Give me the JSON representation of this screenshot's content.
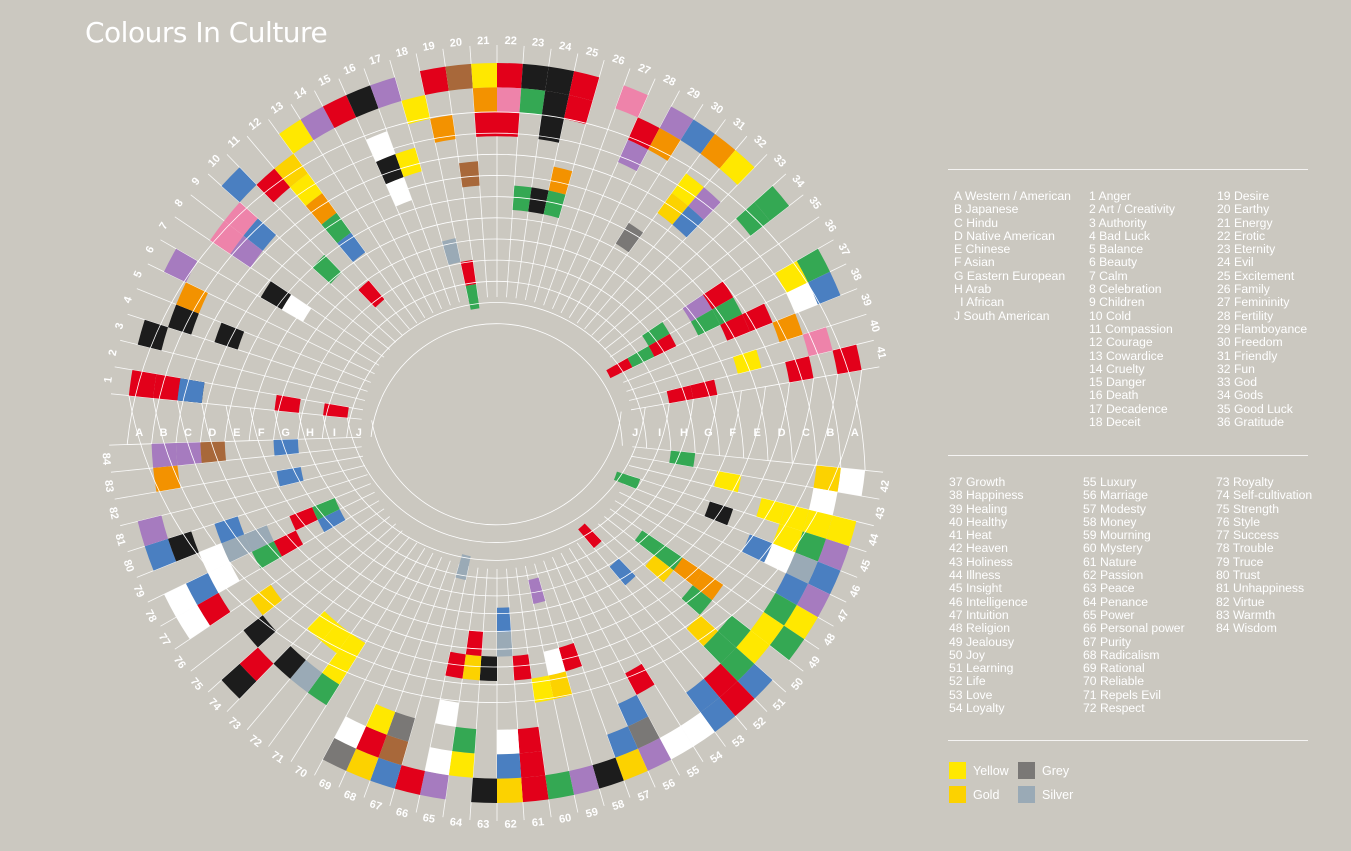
{
  "title": "Colours In Culture",
  "cultures": [
    {
      "code": "A",
      "name": "Western / American"
    },
    {
      "code": "B",
      "name": "Japanese"
    },
    {
      "code": "C",
      "name": "Hindu"
    },
    {
      "code": "D",
      "name": "Native American"
    },
    {
      "code": "E",
      "name": "Chinese"
    },
    {
      "code": "F",
      "name": "Asian"
    },
    {
      "code": "G",
      "name": "Eastern European"
    },
    {
      "code": "H",
      "name": "Arab"
    },
    {
      "code": "I",
      "name": "African"
    },
    {
      "code": "J",
      "name": "South American"
    }
  ],
  "meanings": [
    "Anger",
    "Art / Creativity",
    "Authority",
    "Bad Luck",
    "Balance",
    "Beauty",
    "Calm",
    "Celebration",
    "Children",
    "Cold",
    "Compassion",
    "Courage",
    "Cowardice",
    "Cruelty",
    "Danger",
    "Death",
    "Decadence",
    "Deceit",
    "Desire",
    "Earthy",
    "Energy",
    "Erotic",
    "Eternity",
    "Evil",
    "Excitement",
    "Family",
    "Femininity",
    "Fertility",
    "Flamboyance",
    "Freedom",
    "Friendly",
    "Fun",
    "God",
    "Gods",
    "Good Luck",
    "Gratitude",
    "Growth",
    "Happiness",
    "Healing",
    "Healthy",
    "Heat",
    "Heaven",
    "Holiness",
    "Illness",
    "Insight",
    "Intelligence",
    "Intuition",
    "Religion",
    "Jealousy",
    "Joy",
    "Learning",
    "Life",
    "Love",
    "Loyalty",
    "Luxury",
    "Marriage",
    "Modesty",
    "Money",
    "Mourning",
    "Mystery",
    "Nature",
    "Passion",
    "Peace",
    "Penance",
    "Power",
    "Personal power",
    "Purity",
    "Radicalism",
    "Rational",
    "Reliable",
    "Repels Evil",
    "Respect",
    "Royalty",
    "Self-cultivation",
    "Strength",
    "Style",
    "Success",
    "Trouble",
    "Truce",
    "Trust",
    "Unhappiness",
    "Virtue",
    "Warmth",
    "Wisdom"
  ],
  "legend": [
    {
      "label": "Yellow",
      "color": "#ffe800"
    },
    {
      "label": "Grey",
      "color": "#7a7876"
    },
    {
      "label": "Gold",
      "color": "#fcd200"
    },
    {
      "label": "Silver",
      "color": "#9aaab6"
    }
  ],
  "colors": {
    "red": "#e2001a",
    "black": "#1c1c1c",
    "white": "#ffffff",
    "yellow": "#ffe800",
    "gold": "#fcd200",
    "orange": "#f39200",
    "green": "#34a853",
    "blue": "#4a7fc1",
    "purple": "#a67bbf",
    "pink": "#ee83aa",
    "brown": "#a8683a",
    "grey": "#7a7876",
    "silver": "#9aaab6",
    "background": "#cbc8c0"
  },
  "chart_data": {
    "type": "heatmap",
    "layout": "radial",
    "rings": [
      "A",
      "B",
      "C",
      "D",
      "E",
      "F",
      "G",
      "H",
      "I",
      "J"
    ],
    "cells": [
      [
        1,
        "A",
        "red"
      ],
      [
        1,
        "B",
        "red"
      ],
      [
        1,
        "C",
        "black"
      ],
      [
        1,
        "C",
        "blue"
      ],
      [
        1,
        "G",
        "red"
      ],
      [
        1,
        "I",
        "red"
      ],
      [
        3,
        "A",
        "black"
      ],
      [
        4,
        "B",
        "black"
      ],
      [
        4,
        "D",
        "black"
      ],
      [
        5,
        "B",
        "orange"
      ],
      [
        6,
        "A",
        "purple"
      ],
      [
        7,
        "E",
        "black"
      ],
      [
        7,
        "F",
        "white"
      ],
      [
        8,
        "B",
        "pink"
      ],
      [
        8,
        "C",
        "purple"
      ],
      [
        9,
        "B",
        "pink"
      ],
      [
        9,
        "C",
        "blue"
      ],
      [
        10,
        "A",
        "blue"
      ],
      [
        10,
        "F",
        "green"
      ],
      [
        11,
        "B",
        "red"
      ],
      [
        11,
        "H",
        "red"
      ],
      [
        12,
        "B",
        "gold"
      ],
      [
        12,
        "C",
        "yellow"
      ],
      [
        12,
        "D",
        "orange"
      ],
      [
        12,
        "E",
        "green"
      ],
      [
        12,
        "F",
        "blue"
      ],
      [
        13,
        "A",
        "yellow"
      ],
      [
        14,
        "A",
        "purple"
      ],
      [
        15,
        "A",
        "red"
      ],
      [
        16,
        "A",
        "black"
      ],
      [
        16,
        "C",
        "white"
      ],
      [
        16,
        "D",
        "black"
      ],
      [
        16,
        "E",
        "white"
      ],
      [
        17,
        "A",
        "purple"
      ],
      [
        17,
        "D",
        "yellow"
      ],
      [
        18,
        "B",
        "yellow"
      ],
      [
        18,
        "H",
        "silver"
      ],
      [
        19,
        "A",
        "red"
      ],
      [
        19,
        "C",
        "orange"
      ],
      [
        19,
        "I",
        "red"
      ],
      [
        19,
        "J",
        "green"
      ],
      [
        20,
        "A",
        "brown"
      ],
      [
        20,
        "E",
        "brown"
      ],
      [
        21,
        "A",
        "yellow"
      ],
      [
        21,
        "B",
        "orange"
      ],
      [
        21,
        "C",
        "red"
      ],
      [
        22,
        "A",
        "red"
      ],
      [
        22,
        "B",
        "pink"
      ],
      [
        22,
        "C",
        "red"
      ],
      [
        23,
        "A",
        "black"
      ],
      [
        23,
        "B",
        "green"
      ],
      [
        23,
        "F",
        "green"
      ],
      [
        24,
        "A",
        "black"
      ],
      [
        24,
        "B",
        "black"
      ],
      [
        24,
        "C",
        "black"
      ],
      [
        24,
        "F",
        "black"
      ],
      [
        25,
        "A",
        "red"
      ],
      [
        25,
        "B",
        "red"
      ],
      [
        25,
        "E",
        "orange"
      ],
      [
        25,
        "F",
        "green"
      ],
      [
        27,
        "A",
        "pink"
      ],
      [
        28,
        "B",
        "red"
      ],
      [
        28,
        "C",
        "purple"
      ],
      [
        29,
        "A",
        "purple"
      ],
      [
        29,
        "B",
        "orange"
      ],
      [
        30,
        "A",
        "blue"
      ],
      [
        30,
        "F",
        "grey"
      ],
      [
        31,
        "A",
        "orange"
      ],
      [
        31,
        "C",
        "yellow"
      ],
      [
        31,
        "D",
        "gold"
      ],
      [
        32,
        "A",
        "yellow"
      ],
      [
        32,
        "C",
        "purple"
      ],
      [
        32,
        "D",
        "blue"
      ],
      [
        34,
        "A",
        "green"
      ],
      [
        34,
        "B",
        "green"
      ],
      [
        36,
        "E",
        "red"
      ],
      [
        36,
        "F",
        "purple"
      ],
      [
        36,
        "H",
        "green"
      ],
      [
        37,
        "A",
        "green"
      ],
      [
        37,
        "B",
        "yellow"
      ],
      [
        37,
        "E",
        "green"
      ],
      [
        37,
        "F",
        "green"
      ],
      [
        37,
        "H",
        "red"
      ],
      [
        37,
        "I",
        "green"
      ],
      [
        37,
        "J",
        "red"
      ],
      [
        38,
        "A",
        "blue"
      ],
      [
        38,
        "B",
        "white"
      ],
      [
        38,
        "D",
        "red"
      ],
      [
        38,
        "E",
        "red"
      ],
      [
        39,
        "C",
        "orange"
      ],
      [
        40,
        "B",
        "pink"
      ],
      [
        40,
        "E",
        "yellow"
      ],
      [
        41,
        "A",
        "red"
      ],
      [
        41,
        "C",
        "red"
      ],
      [
        41,
        "G",
        "red"
      ],
      [
        41,
        "H",
        "red"
      ],
      [
        42,
        "A",
        "white"
      ],
      [
        42,
        "B",
        "gold"
      ],
      [
        42,
        "H",
        "green"
      ],
      [
        43,
        "F",
        "yellow"
      ],
      [
        43,
        "B",
        "white"
      ],
      [
        44,
        "A",
        "yellow"
      ],
      [
        44,
        "B",
        "yellow"
      ],
      [
        44,
        "C",
        "yellow"
      ],
      [
        44,
        "D",
        "yellow"
      ],
      [
        45,
        "A",
        "purple"
      ],
      [
        45,
        "B",
        "green"
      ],
      [
        45,
        "C",
        "yellow"
      ],
      [
        45,
        "F",
        "black"
      ],
      [
        45,
        "J",
        "green"
      ],
      [
        46,
        "A",
        "blue"
      ],
      [
        46,
        "B",
        "silver"
      ],
      [
        46,
        "C",
        "white"
      ],
      [
        46,
        "D",
        "blue"
      ],
      [
        47,
        "A",
        "purple"
      ],
      [
        47,
        "B",
        "blue"
      ],
      [
        48,
        "A",
        "yellow"
      ],
      [
        48,
        "B",
        "green"
      ],
      [
        49,
        "A",
        "green"
      ],
      [
        49,
        "B",
        "yellow"
      ],
      [
        49,
        "E",
        "orange"
      ],
      [
        49,
        "F",
        "orange"
      ],
      [
        49,
        "G",
        "green"
      ],
      [
        49,
        "H",
        "green"
      ],
      [
        50,
        "B",
        "yellow"
      ],
      [
        50,
        "C",
        "green"
      ],
      [
        50,
        "E",
        "green"
      ],
      [
        50,
        "G",
        "gold"
      ],
      [
        51,
        "A",
        "blue"
      ],
      [
        51,
        "B",
        "green"
      ],
      [
        51,
        "C",
        "green"
      ],
      [
        51,
        "D",
        "gold"
      ],
      [
        52,
        "A",
        "red"
      ],
      [
        52,
        "B",
        "red"
      ],
      [
        52,
        "J",
        "red"
      ],
      [
        52,
        "H",
        "blue"
      ],
      [
        53,
        "A",
        "blue"
      ],
      [
        53,
        "B",
        "blue"
      ],
      [
        54,
        "A",
        "white"
      ],
      [
        55,
        "A",
        "white"
      ],
      [
        55,
        "D",
        "red"
      ],
      [
        56,
        "A",
        "purple"
      ],
      [
        56,
        "B",
        "grey"
      ],
      [
        56,
        "C",
        "blue"
      ],
      [
        57,
        "A",
        "gold"
      ],
      [
        57,
        "B",
        "blue"
      ],
      [
        58,
        "A",
        "black"
      ],
      [
        58,
        "F",
        "red"
      ],
      [
        59,
        "A",
        "purple"
      ],
      [
        59,
        "E",
        "gold"
      ],
      [
        59,
        "F",
        "white"
      ],
      [
        59,
        "I",
        "purple"
      ],
      [
        60,
        "A",
        "green"
      ],
      [
        60,
        "E",
        "yellow"
      ],
      [
        61,
        "A",
        "red"
      ],
      [
        61,
        "B",
        "red"
      ],
      [
        61,
        "C",
        "red"
      ],
      [
        61,
        "F",
        "red"
      ],
      [
        62,
        "A",
        "gold"
      ],
      [
        62,
        "B",
        "blue"
      ],
      [
        62,
        "C",
        "white"
      ],
      [
        62,
        "G",
        "silver"
      ],
      [
        62,
        "H",
        "blue"
      ],
      [
        63,
        "A",
        "black"
      ],
      [
        63,
        "F",
        "black"
      ],
      [
        64,
        "B",
        "yellow"
      ],
      [
        64,
        "C",
        "green"
      ],
      [
        64,
        "F",
        "gold"
      ],
      [
        64,
        "G",
        "red"
      ],
      [
        65,
        "A",
        "purple"
      ],
      [
        65,
        "B",
        "white"
      ],
      [
        65,
        "D",
        "white"
      ],
      [
        65,
        "F",
        "red"
      ],
      [
        66,
        "A",
        "red"
      ],
      [
        66,
        "J",
        "silver"
      ],
      [
        67,
        "A",
        "blue"
      ],
      [
        67,
        "B",
        "brown"
      ],
      [
        67,
        "C",
        "grey"
      ],
      [
        68,
        "A",
        "gold"
      ],
      [
        68,
        "B",
        "red"
      ],
      [
        68,
        "C",
        "yellow"
      ],
      [
        69,
        "A",
        "grey"
      ],
      [
        69,
        "B",
        "white"
      ],
      [
        71,
        "C",
        "green"
      ],
      [
        71,
        "D",
        "yellow"
      ],
      [
        71,
        "E",
        "yellow"
      ],
      [
        72,
        "C",
        "silver"
      ],
      [
        72,
        "E",
        "yellow"
      ],
      [
        73,
        "C",
        "black"
      ],
      [
        73,
        "E",
        "yellow"
      ],
      [
        74,
        "A",
        "black"
      ],
      [
        74,
        "B",
        "red"
      ],
      [
        75,
        "C",
        "black"
      ],
      [
        76,
        "D",
        "gold"
      ],
      [
        77,
        "A",
        "white"
      ],
      [
        77,
        "B",
        "red"
      ],
      [
        78,
        "A",
        "white"
      ],
      [
        78,
        "B",
        "blue"
      ],
      [
        78,
        "C",
        "white"
      ],
      [
        78,
        "E",
        "green"
      ],
      [
        78,
        "F",
        "red"
      ],
      [
        78,
        "H",
        "blue"
      ],
      [
        79,
        "C",
        "white"
      ],
      [
        79,
        "D",
        "silver"
      ],
      [
        79,
        "E",
        "silver"
      ],
      [
        79,
        "G",
        "red"
      ],
      [
        79,
        "H",
        "green"
      ],
      [
        80,
        "A",
        "blue"
      ],
      [
        80,
        "B",
        "black"
      ],
      [
        80,
        "D",
        "blue"
      ],
      [
        81,
        "A",
        "purple"
      ],
      [
        82,
        "G",
        "blue"
      ],
      [
        83,
        "B",
        "orange"
      ],
      [
        84,
        "B",
        "purple"
      ],
      [
        84,
        "C",
        "purple"
      ],
      [
        84,
        "D",
        "brown"
      ],
      [
        84,
        "G",
        "blue"
      ]
    ]
  }
}
